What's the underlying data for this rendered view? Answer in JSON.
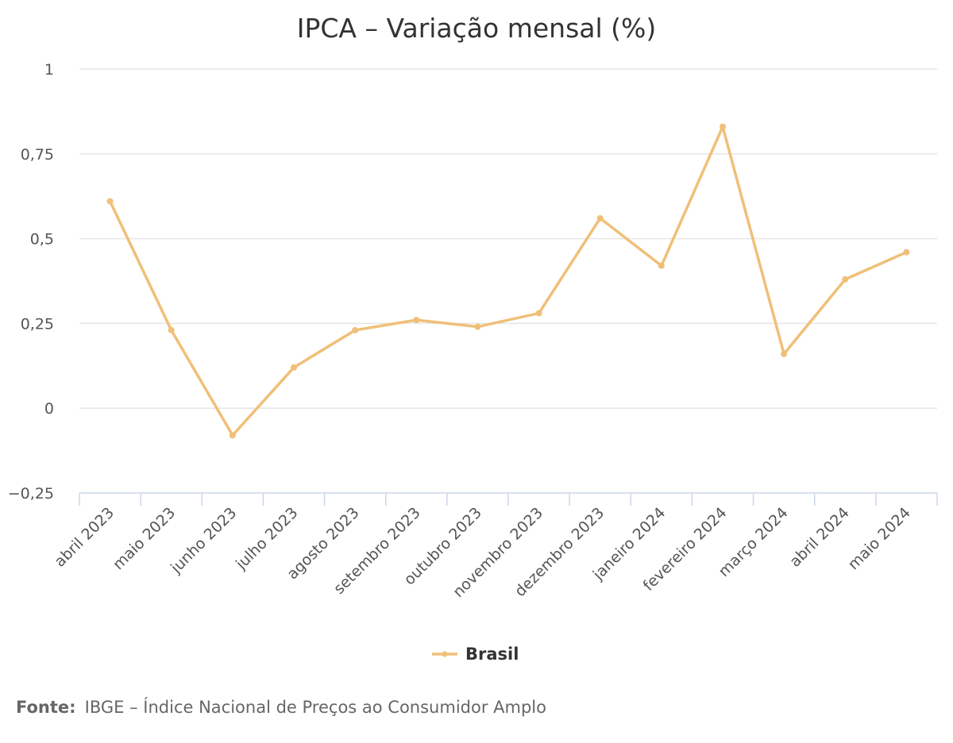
{
  "chart_data": {
    "type": "line",
    "title": "IPCA – Variação mensal (%)",
    "categories": [
      "abril 2023",
      "maio 2023",
      "junho 2023",
      "julho 2023",
      "agosto 2023",
      "setembro 2023",
      "outubro 2023",
      "novembro 2023",
      "dezembro 2023",
      "janeiro 2024",
      "fevereiro 2024",
      "março 2024",
      "abril 2024",
      "maio 2024"
    ],
    "series": [
      {
        "name": "Brasil",
        "color": "#f0bf78",
        "values": [
          0.61,
          0.23,
          -0.08,
          0.12,
          0.23,
          0.26,
          0.24,
          0.28,
          0.56,
          0.42,
          0.83,
          0.16,
          0.38,
          0.46
        ]
      }
    ],
    "ylim": [
      -0.25,
      1
    ],
    "yticks": [
      1,
      0.75,
      0.5,
      0.25,
      0,
      -0.25
    ],
    "ytick_labels": [
      "1",
      "0,75",
      "0,5",
      "0,25",
      "0",
      "−0,25"
    ],
    "grid": true,
    "legend_position": "bottom-center"
  },
  "source": {
    "label": "Fonte:",
    "text": "IBGE – Índice Nacional de Preços ao Consumidor Amplo"
  }
}
